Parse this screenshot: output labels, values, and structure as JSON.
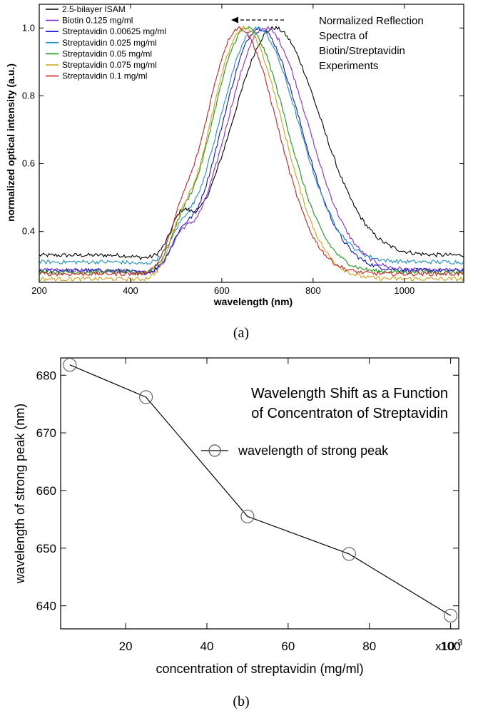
{
  "chart_data": [
    {
      "type": "line",
      "panel_label": "(a)",
      "title_lines": [
        "Normalized Reflection",
        "Spectra of",
        "Biotin/Streptavidin",
        "Experiments"
      ],
      "xlabel": "wavelength (nm)",
      "ylabel": "normalized optical intensity (a.u.)",
      "xlim": [
        200,
        1130
      ],
      "ylim": [
        0.25,
        1.07
      ],
      "xticks": [
        200,
        400,
        600,
        800,
        1000
      ],
      "yticks": [
        0.4,
        0.6,
        0.8,
        1.0
      ],
      "ytick_labels": [
        "0.4",
        "0.6",
        "0.8",
        "1.0"
      ],
      "shift_annotation": "dashed arrow pointing toward shorter wavelength",
      "series": [
        {
          "name": "2.5-bilayer ISAM",
          "color": "#000000",
          "peak": 715,
          "baseline": 0.33,
          "width": 120,
          "shoulder": 0.48
        },
        {
          "name": "Biotin 0.125 mg/ml",
          "color": "#8a2be2",
          "peak": 695,
          "baseline": 0.285,
          "width": 112,
          "shoulder": 0.39
        },
        {
          "name": "Streptavidin 0.00625 mg/ml",
          "color": "#1414c8",
          "peak": 682,
          "baseline": 0.285,
          "width": 108,
          "shoulder": 0.38
        },
        {
          "name": "Streptavidin 0.025 mg/ml",
          "color": "#1e90c8",
          "peak": 676,
          "baseline": 0.31,
          "width": 108,
          "shoulder": 0.38
        },
        {
          "name": "Streptavidin 0.05 mg/ml",
          "color": "#1a9a1a",
          "peak": 655,
          "baseline": 0.28,
          "width": 104,
          "shoulder": 0.37
        },
        {
          "name": "Streptavidin 0.075 mg/ml",
          "color": "#d4a017",
          "peak": 649,
          "baseline": 0.26,
          "width": 102,
          "shoulder": 0.37
        },
        {
          "name": "Streptavidin 0.1 mg/ml",
          "color": "#d62020",
          "peak": 638,
          "baseline": 0.275,
          "width": 100,
          "shoulder": 0.37
        }
      ]
    },
    {
      "type": "line",
      "panel_label": "(b)",
      "title_lines": [
        "Wavelength Shift as a Function",
        "of Concentraton of Streptavidin"
      ],
      "xlabel": "concentration of streptavidin (mg/ml)",
      "ylabel": "wavelength of strong peak (nm)",
      "x_multiplier_label": "x10",
      "x_multiplier_exponent": "-3",
      "xlim": [
        4,
        102
      ],
      "ylim": [
        636,
        683
      ],
      "xticks": [
        20,
        40,
        60,
        80,
        100
      ],
      "xtick_labels": [
        "20",
        "40",
        "60",
        "80",
        "100"
      ],
      "yticks": [
        640,
        650,
        660,
        670,
        680
      ],
      "series": [
        {
          "name": "wavelength of strong peak",
          "x": [
            6.25,
            25,
            50,
            75,
            100
          ],
          "y": [
            681.8,
            676.2,
            655.5,
            649,
            638.3
          ]
        }
      ]
    }
  ]
}
